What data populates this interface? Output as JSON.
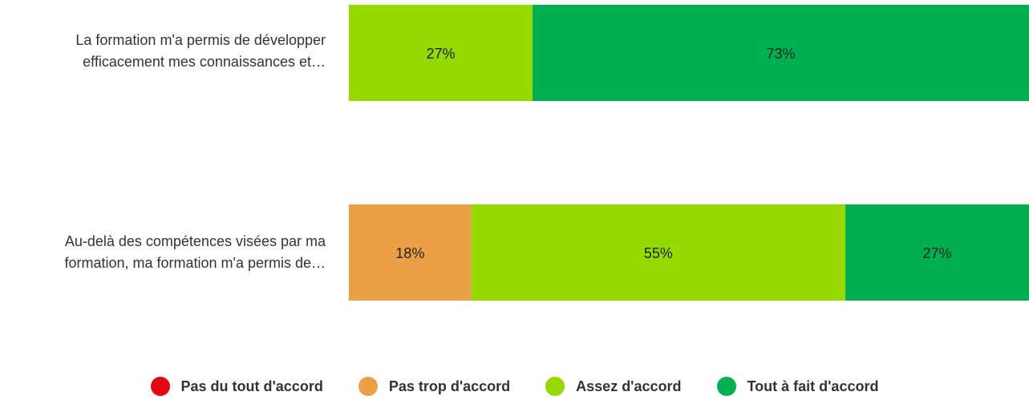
{
  "chart_data": {
    "type": "bar",
    "orientation": "horizontal",
    "stacked": true,
    "categories": [
      [
        "La formation m'a permis de développer",
        "efficacement mes connaissances et…"
      ],
      [
        "Au-delà des compétences visées par ma",
        "formation, ma formation m'a permis de…"
      ]
    ],
    "series": [
      {
        "name": "Pas du tout d'accord",
        "color": "#e30613",
        "values": [
          0,
          0
        ],
        "labels": [
          "",
          ""
        ]
      },
      {
        "name": "Pas trop d'accord",
        "color": "#eba046",
        "values": [
          0,
          18
        ],
        "labels": [
          "",
          "18%"
        ]
      },
      {
        "name": "Assez d'accord",
        "color": "#95d900",
        "values": [
          27,
          55
        ],
        "labels": [
          "27%",
          "55%"
        ]
      },
      {
        "name": "Tout à fait d'accord",
        "color": "#00b050",
        "values": [
          73,
          27
        ],
        "labels": [
          "73%",
          "27%"
        ]
      }
    ],
    "xlim": [
      0,
      100
    ],
    "legend_position": "bottom"
  }
}
